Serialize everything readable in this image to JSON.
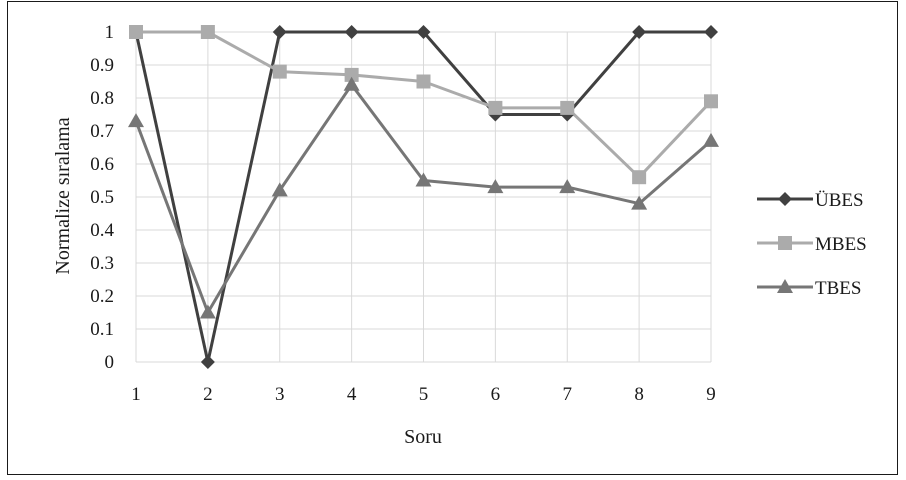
{
  "chart_data": {
    "type": "line",
    "x": [
      1,
      2,
      3,
      4,
      5,
      6,
      7,
      8,
      9
    ],
    "x_tick_labels": [
      "1",
      "2",
      "3",
      "4",
      "5",
      "6",
      "7",
      "8",
      "9"
    ],
    "y_tick_labels": [
      "0",
      "0.1",
      "0.2",
      "0.3",
      "0.4",
      "0.5",
      "0.6",
      "0.7",
      "0.8",
      "0.9",
      "1"
    ],
    "xlabel": "Soru",
    "ylabel": "Normalize sıralama",
    "ylim": [
      0,
      1
    ],
    "grid": true,
    "legend_position": "right",
    "series": [
      {
        "name": "ÜBES",
        "marker": "diamond",
        "color": "#404040",
        "values": [
          1,
          0,
          1,
          1,
          1,
          0.75,
          0.75,
          1,
          1
        ]
      },
      {
        "name": "MBES",
        "marker": "square",
        "color": "#ababab",
        "values": [
          1,
          1,
          0.88,
          0.87,
          0.85,
          0.77,
          0.77,
          0.56,
          0.79
        ]
      },
      {
        "name": "TBES",
        "marker": "triangle",
        "color": "#767676",
        "values": [
          0.73,
          0.15,
          0.52,
          0.84,
          0.55,
          0.53,
          0.53,
          0.48,
          0.67
        ]
      }
    ]
  }
}
